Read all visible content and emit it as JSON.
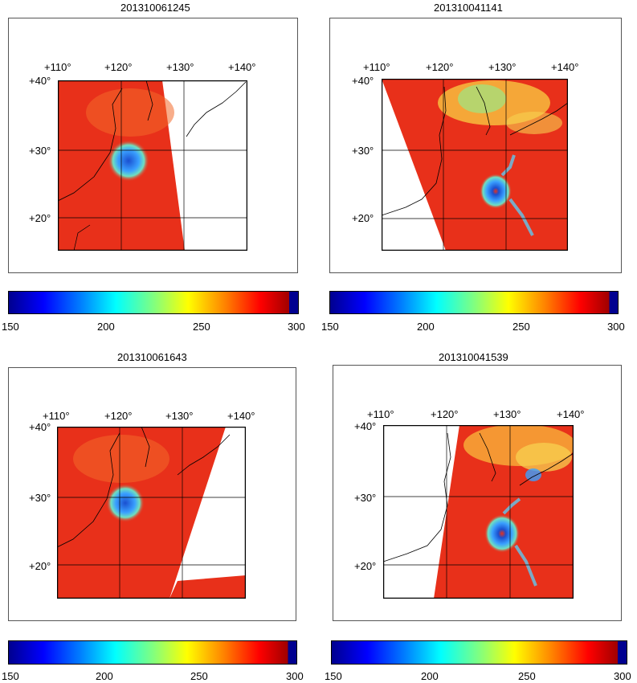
{
  "panels": [
    {
      "title": "201310061245"
    },
    {
      "title": "201310041141"
    },
    {
      "title": "201310061643"
    },
    {
      "title": "201310041539"
    }
  ],
  "lon_labels": [
    "+110°",
    "+120°",
    "+130°",
    "+140°"
  ],
  "lat_labels": [
    "+40°",
    "+30°",
    "+20°"
  ],
  "colorbar": {
    "min": 150,
    "max": 300,
    "ticks": [
      "150",
      "200",
      "250",
      "300"
    ],
    "colors": [
      "#00008f",
      "#0000ff",
      "#00ffff",
      "#ffff00",
      "#ff0000",
      "#a00000",
      "#000090"
    ]
  },
  "colors": {
    "field": "#e8301a",
    "storm": "#1f66d6",
    "land_outline": "#000000"
  }
}
